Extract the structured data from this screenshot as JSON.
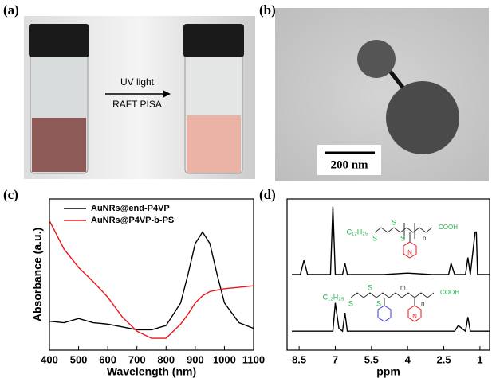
{
  "panel_labels": [
    "(a)",
    "(b)",
    "(c)",
    "(d)"
  ],
  "photo_a": {
    "arrow_top": "UV light",
    "arrow_bottom": "RAFT PISA"
  },
  "tem_b": {
    "scale_bar": "200 nm"
  },
  "structures": [
    {
      "chain": "C₁₂H₂₅",
      "atoms": [
        "S",
        "S",
        "S"
      ],
      "repeat": [
        "n"
      ],
      "ring": [
        "N"
      ],
      "end": "COOH"
    },
    {
      "chain": "C₁₂H₂₅",
      "atoms": [
        "S",
        "S",
        "S"
      ],
      "repeat": [
        "m",
        "n"
      ],
      "ring": [
        "N"
      ],
      "end": "COOH"
    }
  ],
  "chart_data": [
    {
      "type": "line",
      "x_label": "Wavelength (nm)",
      "y_label": "Absorbance (a.u.)",
      "x": [
        400,
        450,
        500,
        550,
        600,
        650,
        700,
        750,
        800,
        850,
        875,
        900,
        925,
        950,
        975,
        1000,
        1050,
        1100
      ],
      "xlim": [
        400,
        1100
      ],
      "xticks": [
        400,
        500,
        600,
        700,
        800,
        900,
        1000,
        1100
      ],
      "ylim": [
        0,
        1
      ],
      "legend": "upper left",
      "series": [
        {
          "name": "AuNRs@end-P4VP",
          "color": "#000000",
          "values": [
            0.17,
            0.16,
            0.19,
            0.16,
            0.15,
            0.13,
            0.11,
            0.11,
            0.14,
            0.3,
            0.5,
            0.72,
            0.8,
            0.72,
            0.5,
            0.3,
            0.16,
            0.12
          ]
        },
        {
          "name": "AuNRs@P4VP-b-PS",
          "color": "#e8161b",
          "values": [
            0.88,
            0.68,
            0.55,
            0.45,
            0.34,
            0.2,
            0.1,
            0.05,
            0.05,
            0.15,
            0.22,
            0.3,
            0.35,
            0.38,
            0.39,
            0.4,
            0.41,
            0.42
          ]
        }
      ]
    },
    {
      "type": "line",
      "x_label": "ppm",
      "x": [
        8.8,
        8.45,
        8.3,
        8.15,
        7.2,
        7.1,
        7.0,
        6.85,
        6.7,
        6.6,
        6.5,
        6.3,
        5.0,
        4.0,
        3.0,
        2.3,
        2.2,
        2.05,
        1.9,
        1.6,
        1.5,
        1.4,
        1.2,
        1.15,
        1.1,
        0.9,
        0.6
      ],
      "xlim": [
        9.0,
        0.6
      ],
      "xticks": [
        8.5,
        7.0,
        5.5,
        4.0,
        2.5,
        1.0
      ],
      "ylim": [
        0,
        1
      ],
      "series": [
        {
          "color": "#000000",
          "values": [
            0.5,
            0.5,
            0.6,
            0.5,
            0.5,
            0.98,
            0.5,
            0.5,
            0.5,
            0.58,
            0.5,
            0.5,
            0.5,
            0.51,
            0.5,
            0.5,
            0.58,
            0.5,
            0.5,
            0.5,
            0.62,
            0.5,
            0.8,
            0.8,
            0.5,
            0.5,
            0.5
          ]
        },
        {
          "color": "#000000",
          "values": [
            0.1,
            0.1,
            0.1,
            0.1,
            0.1,
            0.1,
            0.3,
            0.12,
            0.1,
            0.23,
            0.1,
            0.1,
            0.1,
            0.1,
            0.1,
            0.1,
            0.1,
            0.1,
            0.14,
            0.1,
            0.2,
            0.1,
            0.1,
            0.1,
            0.1,
            0.1,
            0.1
          ]
        }
      ]
    }
  ]
}
